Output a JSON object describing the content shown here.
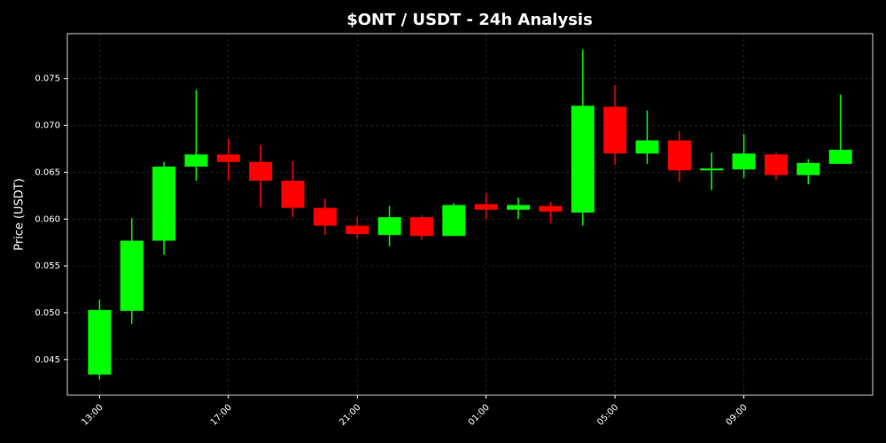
{
  "chart_data": {
    "type": "candlestick",
    "title": "$ONT / USDT - 24h Analysis",
    "y_label": "Price (USDT)",
    "categories": [
      "13:00",
      null,
      null,
      null,
      "17:00",
      null,
      null,
      null,
      "21:00",
      null,
      null,
      null,
      "01:00",
      null,
      null,
      null,
      "05:00",
      null,
      null,
      null,
      "09:00",
      null,
      null,
      null
    ],
    "open": [
      0.0434,
      0.0502,
      0.0577,
      0.0656,
      0.0669,
      0.0661,
      0.0641,
      0.0612,
      0.0593,
      0.0583,
      0.0602,
      0.0582,
      0.0616,
      0.061,
      0.0614,
      0.0607,
      0.072,
      0.067,
      0.0684,
      0.0652,
      0.0653,
      0.0669,
      0.0647,
      0.0659
    ],
    "high": [
      0.0514,
      0.0601,
      0.0661,
      0.0738,
      0.0686,
      0.0679,
      0.0662,
      0.0622,
      0.0602,
      0.0614,
      0.0604,
      0.0617,
      0.0628,
      0.0623,
      0.0618,
      0.0781,
      0.0743,
      0.0716,
      0.0694,
      0.0671,
      0.0691,
      0.0671,
      0.0664,
      0.0733
    ],
    "low": [
      0.0429,
      0.0488,
      0.0562,
      0.0641,
      0.0641,
      0.0613,
      0.0602,
      0.0583,
      0.0579,
      0.0571,
      0.0578,
      0.0582,
      0.06,
      0.06,
      0.0596,
      0.0593,
      0.0658,
      0.0659,
      0.064,
      0.0631,
      0.0644,
      0.0642,
      0.0637,
      0.0659
    ],
    "close": [
      0.0503,
      0.0577,
      0.0656,
      0.0669,
      0.0661,
      0.0641,
      0.0612,
      0.0593,
      0.0584,
      0.0602,
      0.0582,
      0.0615,
      0.061,
      0.0615,
      0.0608,
      0.0721,
      0.067,
      0.0684,
      0.0652,
      0.0654,
      0.067,
      0.0647,
      0.066,
      0.0674
    ],
    "up_color": "#00ff00",
    "down_color": "#ff0000",
    "ylim": [
      0.0412,
      0.0798
    ],
    "yticks": [
      0.045,
      {
        "value": 0.05,
        "label": "0.050"
      },
      0.055,
      {
        "value": 0.06,
        "label": "0.060"
      },
      0.065,
      {
        "value": 0.07,
        "label": "0.070"
      },
      0.075
    ],
    "grid": true
  }
}
